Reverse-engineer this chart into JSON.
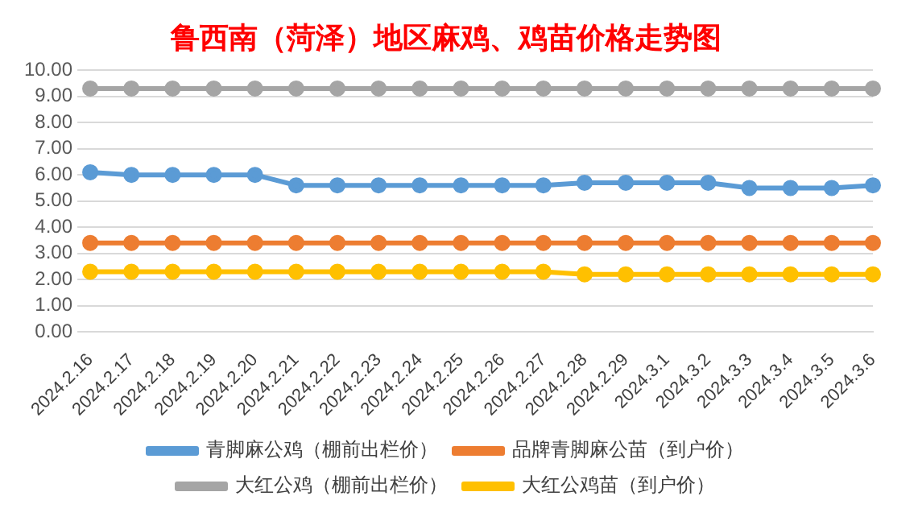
{
  "chart_data": {
    "type": "line",
    "title": "鲁西南（菏泽）地区麻鸡、鸡苗价格走势图",
    "categories": [
      "2024.2.16",
      "2024.2.17",
      "2024.2.18",
      "2024.2.19",
      "2024.2.20",
      "2024.2.21",
      "2024.2.22",
      "2024.2.23",
      "2024.2.24",
      "2024.2.25",
      "2024.2.26",
      "2024.2.27",
      "2024.2.28",
      "2024.2.29",
      "2024.3.1",
      "2024.3.2",
      "2024.3.3",
      "2024.3.4",
      "2024.3.5",
      "2024.3.6"
    ],
    "series": [
      {
        "name": "青脚麻公鸡（棚前出栏价）",
        "color": "#5b9bd5",
        "values": [
          6.1,
          6.0,
          6.0,
          6.0,
          6.0,
          5.6,
          5.6,
          5.6,
          5.6,
          5.6,
          5.6,
          5.6,
          5.7,
          5.7,
          5.7,
          5.7,
          5.5,
          5.5,
          5.5,
          5.6
        ]
      },
      {
        "name": "品牌青脚麻公苗（到户价）",
        "color": "#ed7d31",
        "values": [
          3.4,
          3.4,
          3.4,
          3.4,
          3.4,
          3.4,
          3.4,
          3.4,
          3.4,
          3.4,
          3.4,
          3.4,
          3.4,
          3.4,
          3.4,
          3.4,
          3.4,
          3.4,
          3.4,
          3.4
        ]
      },
      {
        "name": "大红公鸡（棚前出栏价）",
        "color": "#a5a5a5",
        "values": [
          9.3,
          9.3,
          9.3,
          9.3,
          9.3,
          9.3,
          9.3,
          9.3,
          9.3,
          9.3,
          9.3,
          9.3,
          9.3,
          9.3,
          9.3,
          9.3,
          9.3,
          9.3,
          9.3,
          9.3
        ]
      },
      {
        "name": "大红公鸡苗（到户价）",
        "color": "#ffc000",
        "values": [
          2.3,
          2.3,
          2.3,
          2.3,
          2.3,
          2.3,
          2.3,
          2.3,
          2.3,
          2.3,
          2.3,
          2.3,
          2.2,
          2.2,
          2.2,
          2.2,
          2.2,
          2.2,
          2.2,
          2.2
        ]
      }
    ],
    "ylim": [
      0,
      10
    ],
    "yticks": [
      {
        "value": 0,
        "label": "0.00"
      },
      {
        "value": 1,
        "label": "1.00"
      },
      {
        "value": 2,
        "label": "2.00"
      },
      {
        "value": 3,
        "label": "3.00"
      },
      {
        "value": 4,
        "label": "4.00"
      },
      {
        "value": 5,
        "label": "5.00"
      },
      {
        "value": 6,
        "label": "6.00"
      },
      {
        "value": 7,
        "label": "7.00"
      },
      {
        "value": 8,
        "label": "8.00"
      },
      {
        "value": 9,
        "label": "9.00"
      },
      {
        "value": 10,
        "label": "10.00"
      }
    ],
    "grid": "y",
    "legend": "bottom",
    "marker": "circle",
    "line_style": "solid"
  }
}
